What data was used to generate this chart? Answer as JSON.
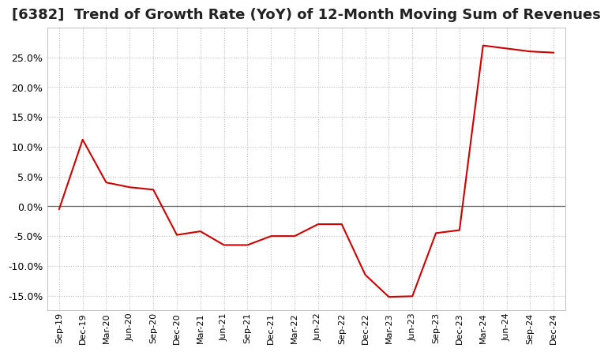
{
  "title": "[6382]  Trend of Growth Rate (YoY) of 12-Month Moving Sum of Revenues",
  "x_labels": [
    "Sep-19",
    "Dec-19",
    "Mar-20",
    "Jun-20",
    "Sep-20",
    "Dec-20",
    "Mar-21",
    "Jun-21",
    "Sep-21",
    "Dec-21",
    "Mar-22",
    "Jun-22",
    "Sep-22",
    "Dec-22",
    "Mar-23",
    "Jun-23",
    "Sep-23",
    "Dec-23",
    "Mar-24",
    "Jun-24",
    "Sep-24",
    "Dec-24"
  ],
  "y_values": [
    -0.5,
    11.2,
    4.0,
    3.2,
    2.8,
    -4.8,
    -4.2,
    -6.5,
    -6.5,
    -5.0,
    -5.0,
    -3.0,
    -3.0,
    -11.5,
    -15.2,
    -15.1,
    -4.5,
    -4.0,
    27.0,
    26.5,
    26.0,
    25.8
  ],
  "line_color": "#cc0000",
  "background_color": "#ffffff",
  "plot_bg_color": "#ffffff",
  "grid_color": "#bbbbbb",
  "ylim": [
    -17.5,
    30.0
  ],
  "yticks": [
    -15.0,
    -10.0,
    -5.0,
    0.0,
    5.0,
    10.0,
    15.0,
    20.0,
    25.0
  ],
  "zero_line_color": "#666666",
  "title_fontsize": 13,
  "tick_fontsize": 9,
  "xtick_fontsize": 8
}
